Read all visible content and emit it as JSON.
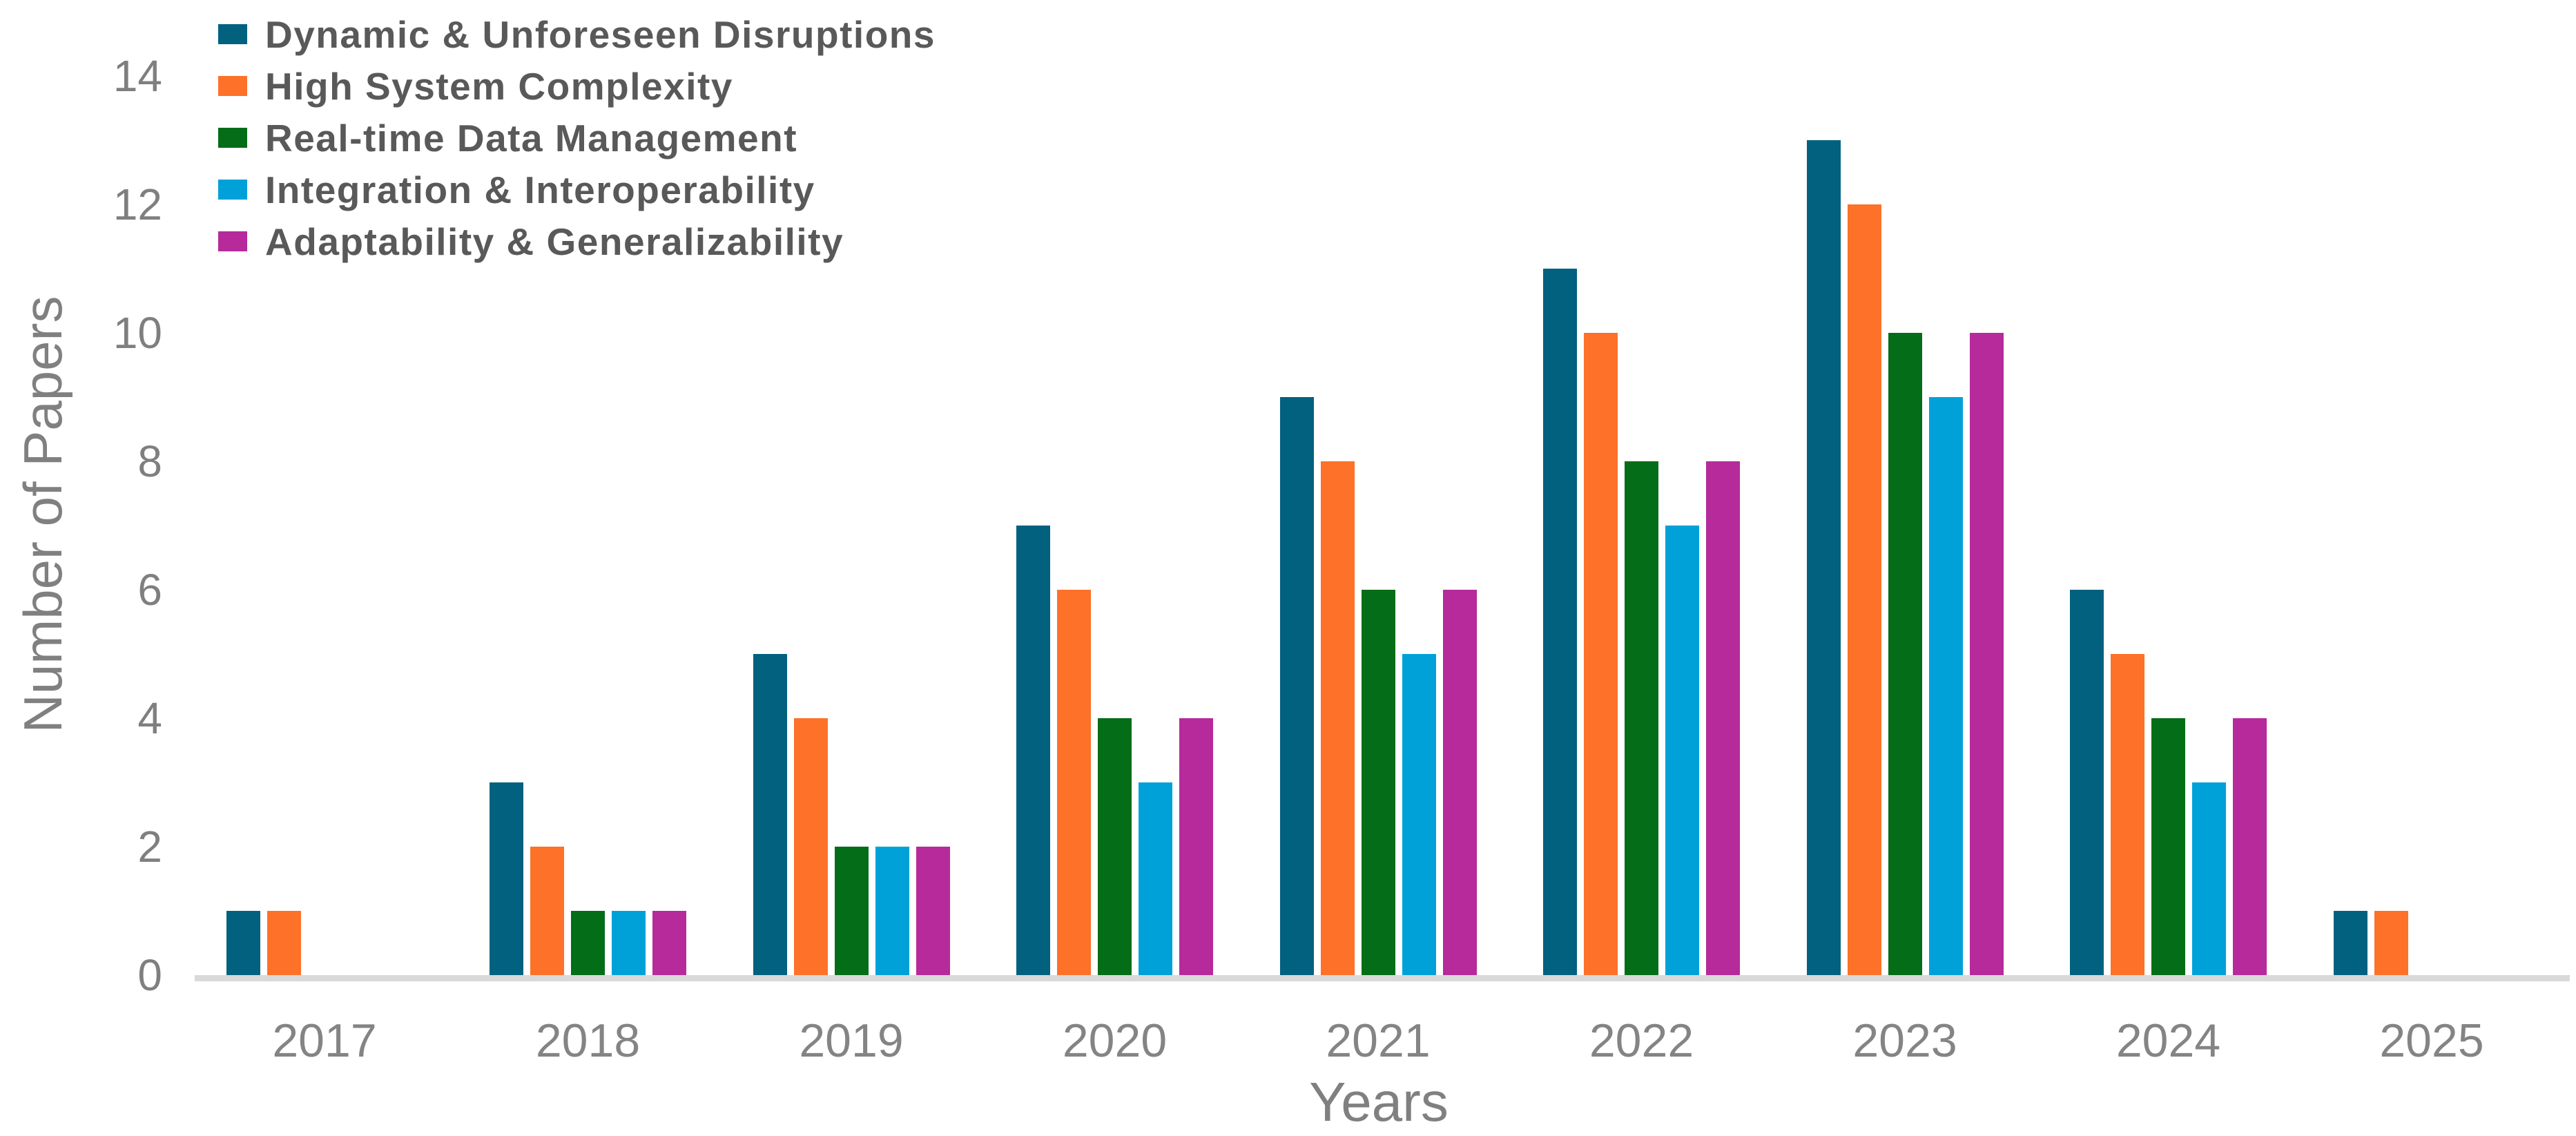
{
  "chart_data": {
    "type": "bar",
    "title": "",
    "xlabel": "Years",
    "ylabel": "Number of Papers",
    "categories": [
      "2017",
      "2018",
      "2019",
      "2020",
      "2021",
      "2022",
      "2023",
      "2024",
      "2025"
    ],
    "series": [
      {
        "name": "Dynamic & Unforeseen Disruptions",
        "color": "#01617F",
        "values": [
          1,
          3,
          5,
          7,
          9,
          11,
          13,
          6,
          1
        ]
      },
      {
        "name": "High System Complexity",
        "color": "#FD7129",
        "values": [
          1,
          2,
          4,
          6,
          8,
          10,
          12,
          5,
          1
        ]
      },
      {
        "name": "Real-time Data Management",
        "color": "#046D17",
        "values": [
          0,
          1,
          2,
          4,
          6,
          8,
          10,
          4,
          0
        ]
      },
      {
        "name": "Integration & Interoperability",
        "color": "#00A1D9",
        "values": [
          0,
          1,
          2,
          3,
          5,
          7,
          9,
          3,
          0
        ]
      },
      {
        "name": "Adaptability & Generalizability",
        "color": "#B62A9B",
        "values": [
          0,
          1,
          2,
          4,
          6,
          8,
          10,
          4,
          0
        ]
      }
    ],
    "y_ticks": [
      0,
      2,
      4,
      6,
      8,
      10,
      12,
      14
    ],
    "ylim": [
      0,
      14
    ],
    "grid": false,
    "legend_position": "top-left",
    "axis_line_color": "#D9D9D9",
    "tick_text_color": "#7F7F7F",
    "legend_text_color": "#595959"
  }
}
